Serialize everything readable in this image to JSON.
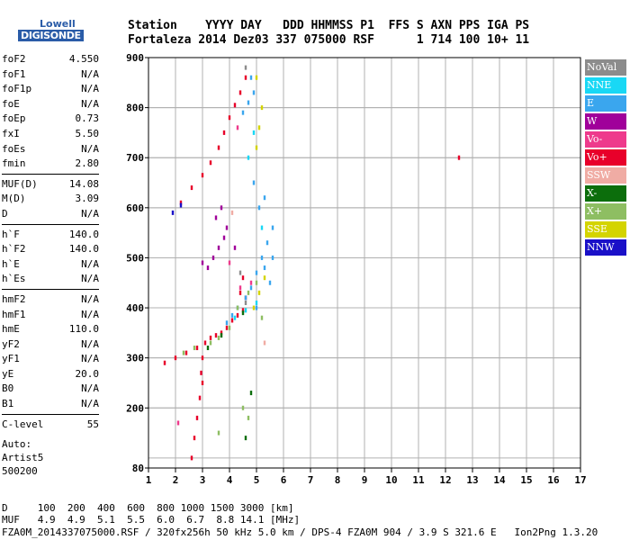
{
  "logo": {
    "line1": "Lowell",
    "line2": "DIGISONDE"
  },
  "header": {
    "line1": "Station    YYYY DAY   DDD HHMMSS P1  FFS S AXN PPS IGA PS",
    "line2": "Fortaleza 2014 Dez03 337 075000 RSF      1 714 100 10+ 11"
  },
  "params": [
    [
      [
        "foF2",
        "4.550"
      ],
      [
        "foF1",
        "N/A"
      ],
      [
        "foF1p",
        "N/A"
      ],
      [
        "foE",
        "N/A"
      ],
      [
        "foEp",
        "0.73"
      ],
      [
        "fxI",
        "5.50"
      ],
      [
        "foEs",
        "N/A"
      ],
      [
        "fmin",
        "2.80"
      ]
    ],
    [
      [
        "MUF(D)",
        "14.08"
      ],
      [
        "M(D)",
        "3.09"
      ],
      [
        "D",
        "N/A"
      ]
    ],
    [
      [
        "h`F",
        "140.0"
      ],
      [
        "h`F2",
        "140.0"
      ],
      [
        "h`E",
        "N/A"
      ],
      [
        "h`Es",
        "N/A"
      ]
    ],
    [
      [
        "hmF2",
        "N/A"
      ],
      [
        "hmF1",
        "N/A"
      ],
      [
        "hmE",
        "110.0"
      ],
      [
        "yF2",
        "N/A"
      ],
      [
        "yF1",
        "N/A"
      ],
      [
        "yE",
        "20.0"
      ],
      [
        "B0",
        "N/A"
      ],
      [
        "B1",
        "N/A"
      ]
    ],
    [
      [
        "C-level",
        "55"
      ]
    ]
  ],
  "auto": {
    "l1": "Auto:",
    "l2": "Artist5",
    "l3": "500200"
  },
  "bottom": {
    "line1": "D     100  200  400  600  800 1000 1500 3000 [km]",
    "line2": "MUF   4.9  4.9  5.1  5.5  6.0  6.7  8.8 14.1 [MHz]",
    "line3": "FZA0M_2014337075000.RSF / 320fx256h 50 kHz 5.0 km / DPS-4 FZA0M 904 / 3.9 S 321.6 E   Ion2Png 1.3.20"
  },
  "legend": [
    {
      "label": "NoVal",
      "color": "#8c8c8c"
    },
    {
      "label": "NNE",
      "color": "#19d8f5"
    },
    {
      "label": "E",
      "color": "#3aa6ee"
    },
    {
      "label": "W",
      "color": "#a0009a"
    },
    {
      "label": "Vo-",
      "color": "#ee3a8c"
    },
    {
      "label": "Vo+",
      "color": "#e8002a"
    },
    {
      "label": "SSW",
      "color": "#f0aca4"
    },
    {
      "label": "X-",
      "color": "#0c6e0c"
    },
    {
      "label": "X+",
      "color": "#8ebe62"
    },
    {
      "label": "SSE",
      "color": "#d4d400"
    },
    {
      "label": "NNW",
      "color": "#1a10c8"
    }
  ],
  "chart_data": {
    "type": "scatter",
    "title": "",
    "xlabel": "",
    "ylabel": "",
    "xlim": [
      1,
      17
    ],
    "ylim": [
      80,
      900
    ],
    "xticks": [
      1,
      2,
      3,
      4,
      5,
      6,
      7,
      8,
      9,
      10,
      11,
      12,
      13,
      14,
      15,
      16,
      17
    ],
    "yticks": [
      100,
      200,
      300,
      400,
      500,
      600,
      700,
      800
    ],
    "ytick_labels": [
      "80",
      "200",
      "300",
      "400",
      "500",
      "600",
      "700",
      "800",
      "900"
    ],
    "ytick_label_values": [
      80,
      200,
      300,
      400,
      500,
      600,
      700,
      800,
      900
    ],
    "grid": true,
    "series": [
      {
        "name": "Vo+",
        "color": "#e8002a",
        "points": [
          [
            1.6,
            290
          ],
          [
            2.0,
            300
          ],
          [
            2.4,
            310
          ],
          [
            2.8,
            320
          ],
          [
            3.1,
            330
          ],
          [
            3.3,
            340
          ],
          [
            3.5,
            345
          ],
          [
            3.7,
            350
          ],
          [
            3.9,
            360
          ],
          [
            4.1,
            375
          ],
          [
            4.3,
            385
          ],
          [
            4.5,
            395
          ],
          [
            2.2,
            610
          ],
          [
            2.6,
            640
          ],
          [
            3.0,
            665
          ],
          [
            3.3,
            690
          ],
          [
            3.6,
            720
          ],
          [
            3.8,
            750
          ],
          [
            4.0,
            780
          ],
          [
            4.2,
            805
          ],
          [
            4.4,
            830
          ],
          [
            4.6,
            860
          ],
          [
            3.0,
            250
          ],
          [
            2.9,
            220
          ],
          [
            2.8,
            180
          ],
          [
            2.7,
            140
          ],
          [
            2.6,
            100
          ],
          [
            3.0,
            300
          ],
          [
            2.95,
            270
          ],
          [
            4.4,
            430
          ],
          [
            4.5,
            460
          ],
          [
            4.6,
            420
          ],
          [
            12.5,
            700
          ]
        ]
      },
      {
        "name": "E",
        "color": "#3aa6ee",
        "points": [
          [
            4.6,
            420
          ],
          [
            4.8,
            440
          ],
          [
            5.0,
            470
          ],
          [
            5.2,
            500
          ],
          [
            5.4,
            530
          ],
          [
            5.6,
            560
          ],
          [
            5.1,
            600
          ],
          [
            5.3,
            620
          ],
          [
            4.9,
            650
          ],
          [
            4.5,
            790
          ],
          [
            4.7,
            810
          ],
          [
            4.9,
            830
          ],
          [
            4.8,
            860
          ],
          [
            5.5,
            450
          ],
          [
            5.0,
            400
          ],
          [
            4.3,
            400
          ],
          [
            4.1,
            385
          ],
          [
            3.9,
            370
          ],
          [
            5.3,
            480
          ],
          [
            5.6,
            500
          ]
        ]
      },
      {
        "name": "NNE",
        "color": "#19d8f5",
        "points": [
          [
            4.2,
            380
          ],
          [
            4.6,
            395
          ],
          [
            5.0,
            410
          ],
          [
            4.7,
            700
          ],
          [
            4.9,
            750
          ],
          [
            5.2,
            560
          ]
        ]
      },
      {
        "name": "W",
        "color": "#a0009a",
        "points": [
          [
            3.2,
            480
          ],
          [
            3.4,
            500
          ],
          [
            3.6,
            520
          ],
          [
            3.8,
            540
          ],
          [
            3.5,
            580
          ],
          [
            3.7,
            600
          ],
          [
            3.9,
            560
          ],
          [
            4.2,
            520
          ],
          [
            3.0,
            490
          ]
        ]
      },
      {
        "name": "X+",
        "color": "#8ebe62",
        "points": [
          [
            2.3,
            310
          ],
          [
            2.7,
            320
          ],
          [
            3.3,
            330
          ],
          [
            3.6,
            340
          ],
          [
            4.0,
            360
          ],
          [
            4.3,
            400
          ],
          [
            4.7,
            430
          ],
          [
            5.0,
            450
          ],
          [
            5.2,
            380
          ],
          [
            4.5,
            200
          ],
          [
            4.7,
            180
          ],
          [
            3.6,
            150
          ]
        ]
      },
      {
        "name": "X-",
        "color": "#0c6e0c",
        "points": [
          [
            3.2,
            320
          ],
          [
            3.7,
            345
          ],
          [
            4.5,
            390
          ],
          [
            4.8,
            230
          ],
          [
            4.6,
            140
          ]
        ]
      },
      {
        "name": "SSE",
        "color": "#d4d400",
        "points": [
          [
            4.9,
            400
          ],
          [
            5.1,
            430
          ],
          [
            5.3,
            460
          ],
          [
            5.0,
            720
          ],
          [
            5.1,
            760
          ],
          [
            5.2,
            800
          ],
          [
            5.0,
            860
          ]
        ]
      },
      {
        "name": "Vo-",
        "color": "#ee3a8c",
        "points": [
          [
            4.4,
            440
          ],
          [
            4.8,
            450
          ],
          [
            4.0,
            490
          ],
          [
            4.3,
            760
          ],
          [
            2.1,
            170
          ]
        ]
      },
      {
        "name": "NoVal",
        "color": "#8c8c8c",
        "points": [
          [
            4.6,
            410
          ],
          [
            4.4,
            470
          ],
          [
            4.6,
            880
          ]
        ]
      },
      {
        "name": "NNW",
        "color": "#1a10c8",
        "points": [
          [
            1.9,
            590
          ],
          [
            2.2,
            605
          ]
        ]
      },
      {
        "name": "SSW",
        "color": "#f0aca4",
        "points": [
          [
            4.1,
            590
          ],
          [
            5.3,
            330
          ]
        ]
      }
    ]
  }
}
